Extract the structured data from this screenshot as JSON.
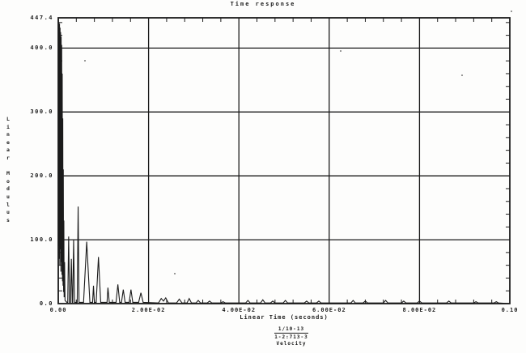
{
  "chart_data": {
    "type": "line",
    "title": "Time response",
    "xlabel": "Linear Time (seconds)",
    "ylabel": "Linear Modulus",
    "xlim": [
      0,
      0.1
    ],
    "ylim": [
      0,
      447.4
    ],
    "grid": "major gridlines: x every 0.02 s, y every 100 units; minor ticks x every 0.004, y every 20; full box frame",
    "legend_position": "none",
    "x_ticks": [
      {
        "t": 0.0,
        "label": "0.00"
      },
      {
        "t": 0.02,
        "label": "2.00E-02"
      },
      {
        "t": 0.04,
        "label": "4.00E-02"
      },
      {
        "t": 0.06,
        "label": "6.00E-02"
      },
      {
        "t": 0.08,
        "label": "8.00E-02"
      },
      {
        "t": 0.1,
        "label": "0.10"
      }
    ],
    "y_ticks": [
      {
        "v": 447.4,
        "label": "447.4"
      },
      {
        "v": 400,
        "label": "400.0"
      },
      {
        "v": 300,
        "label": "300.0"
      },
      {
        "v": 200,
        "label": "200.0"
      },
      {
        "v": 100,
        "label": "100.0"
      },
      {
        "v": 0,
        "label": "0.0"
      }
    ],
    "x_minor_step": 0.004,
    "y_minor_step": 20,
    "series": [
      {
        "name": "Velocity",
        "points": [
          [
            0,
            0
          ],
          [
            4e-05,
            445
          ],
          [
            0.0001,
            90
          ],
          [
            0.00016,
            440
          ],
          [
            0.00022,
            70
          ],
          [
            0.00028,
            438
          ],
          [
            0.00034,
            60
          ],
          [
            0.0004,
            432
          ],
          [
            0.00046,
            85
          ],
          [
            0.00052,
            425
          ],
          [
            0.00058,
            50
          ],
          [
            0.00064,
            418
          ],
          [
            0.0007,
            65
          ],
          [
            0.00076,
            405
          ],
          [
            0.00082,
            45
          ],
          [
            0.00088,
            360
          ],
          [
            0.00094,
            35
          ],
          [
            0.001,
            290
          ],
          [
            0.00106,
            28
          ],
          [
            0.00112,
            210
          ],
          [
            0.00118,
            18
          ],
          [
            0.00124,
            130
          ],
          [
            0.0013,
            10
          ],
          [
            0.0014,
            65
          ],
          [
            0.0015,
            5
          ],
          [
            0.0019,
            2
          ],
          [
            0.0021,
            2
          ],
          [
            0.0023,
            105
          ],
          [
            0.0025,
            2
          ],
          [
            0.0027,
            2
          ],
          [
            0.0029,
            70
          ],
          [
            0.0031,
            2
          ],
          [
            0.0032,
            2
          ],
          [
            0.0034,
            100
          ],
          [
            0.0036,
            2
          ],
          [
            0.0042,
            2
          ],
          [
            0.0044,
            152
          ],
          [
            0.0046,
            2
          ],
          [
            0.0056,
            2
          ],
          [
            0.0063,
            97
          ],
          [
            0.007,
            2
          ],
          [
            0.0076,
            2
          ],
          [
            0.0078,
            28
          ],
          [
            0.008,
            2
          ],
          [
            0.0084,
            2
          ],
          [
            0.0089,
            73
          ],
          [
            0.0094,
            2
          ],
          [
            0.0108,
            2
          ],
          [
            0.011,
            25
          ],
          [
            0.0113,
            2
          ],
          [
            0.0128,
            2
          ],
          [
            0.0132,
            30
          ],
          [
            0.0136,
            2
          ],
          [
            0.014,
            2
          ],
          [
            0.0144,
            22
          ],
          [
            0.0148,
            2
          ],
          [
            0.0157,
            2
          ],
          [
            0.0161,
            22
          ],
          [
            0.0165,
            2
          ],
          [
            0.0178,
            2
          ],
          [
            0.0183,
            17
          ],
          [
            0.0188,
            2
          ],
          [
            0.0222,
            1
          ],
          [
            0.0228,
            8
          ],
          [
            0.0233,
            4
          ],
          [
            0.0238,
            9
          ],
          [
            0.0244,
            1
          ],
          [
            0.0262,
            1
          ],
          [
            0.0268,
            7
          ],
          [
            0.0274,
            1
          ],
          [
            0.0285,
            1
          ],
          [
            0.029,
            8
          ],
          [
            0.0295,
            1
          ],
          [
            0.0305,
            1
          ],
          [
            0.031,
            5
          ],
          [
            0.0315,
            1
          ],
          [
            0.033,
            1
          ],
          [
            0.0335,
            4
          ],
          [
            0.034,
            1
          ],
          [
            0.036,
            1
          ],
          [
            0.0365,
            3
          ],
          [
            0.037,
            1
          ],
          [
            0.0415,
            1
          ],
          [
            0.042,
            5
          ],
          [
            0.0425,
            1
          ],
          [
            0.0448,
            1
          ],
          [
            0.0453,
            6
          ],
          [
            0.0458,
            1
          ],
          [
            0.047,
            1
          ],
          [
            0.0475,
            4
          ],
          [
            0.048,
            1
          ],
          [
            0.0498,
            1
          ],
          [
            0.0503,
            5
          ],
          [
            0.0508,
            1
          ],
          [
            0.0545,
            1
          ],
          [
            0.055,
            4
          ],
          [
            0.0555,
            1
          ],
          [
            0.0572,
            1
          ],
          [
            0.0577,
            4
          ],
          [
            0.0582,
            1
          ],
          [
            0.0648,
            1
          ],
          [
            0.0653,
            5
          ],
          [
            0.0658,
            1
          ],
          [
            0.0675,
            1
          ],
          [
            0.068,
            4
          ],
          [
            0.0685,
            1
          ],
          [
            0.072,
            1
          ],
          [
            0.0725,
            5
          ],
          [
            0.073,
            1
          ],
          [
            0.076,
            1
          ],
          [
            0.0765,
            4
          ],
          [
            0.077,
            1
          ],
          [
            0.0795,
            1
          ],
          [
            0.08,
            4
          ],
          [
            0.0805,
            1
          ],
          [
            0.086,
            1
          ],
          [
            0.0865,
            4
          ],
          [
            0.087,
            1
          ],
          [
            0.092,
            1
          ],
          [
            0.0925,
            3
          ],
          [
            0.093,
            1
          ],
          [
            0.0965,
            1
          ],
          [
            0.097,
            3
          ],
          [
            0.0975,
            1
          ],
          [
            0.1,
            0
          ]
        ]
      }
    ],
    "annotation": {
      "numerator": "1/10-13",
      "denominator": "1-2:713-3",
      "label": "Velocity"
    }
  },
  "colors": {
    "ink": "#1b1b1b",
    "paper": "#fdfdfc"
  }
}
